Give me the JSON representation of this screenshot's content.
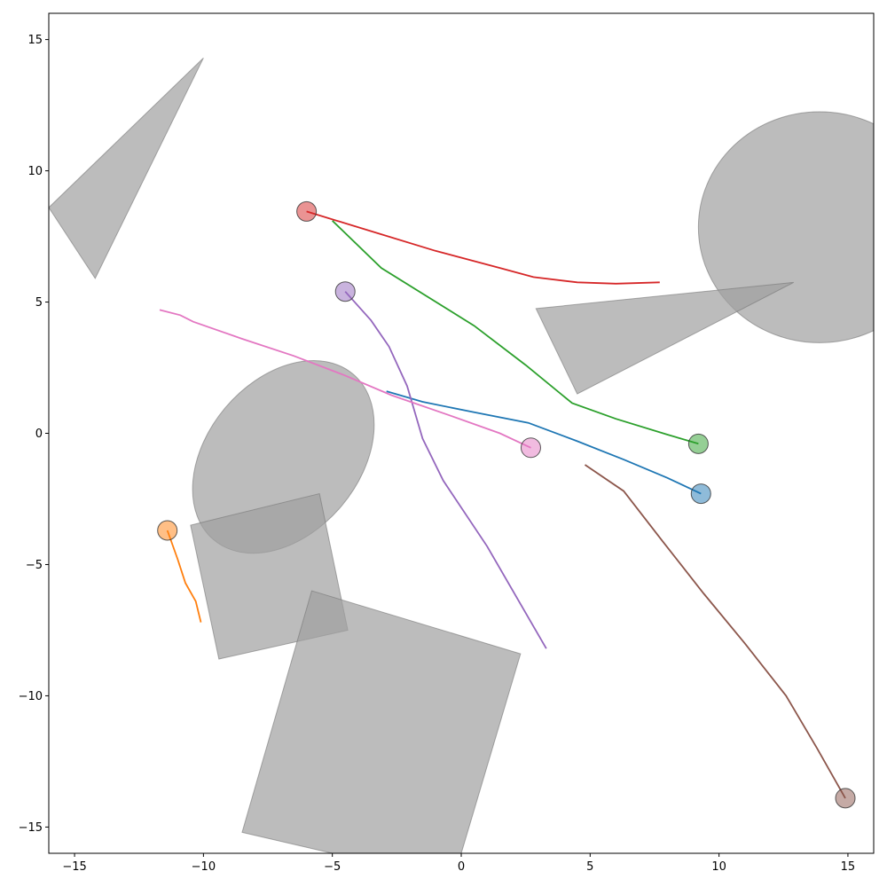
{
  "chart_data": {
    "type": "scatter",
    "title": "",
    "xlabel": "",
    "ylabel": "",
    "xlim": [
      -16,
      16
    ],
    "ylim": [
      -16,
      16
    ],
    "grid": false,
    "x_ticks": [
      -15,
      -10,
      -5,
      0,
      5,
      10,
      15
    ],
    "y_ticks": [
      -15,
      -10,
      -5,
      0,
      5,
      10,
      15
    ],
    "x_tick_labels": [
      "−15",
      "−10",
      "−5",
      "0",
      "5",
      "10",
      "15"
    ],
    "y_tick_labels": [
      "−15",
      "−10",
      "−5",
      "0",
      "5",
      "10",
      "15"
    ],
    "obstacles": [
      {
        "shape": "polygon",
        "points": [
          [
            -10.0,
            14.3
          ],
          [
            -16.0,
            8.6
          ],
          [
            -14.2,
            5.9
          ]
        ],
        "color": "#a0a0a0"
      },
      {
        "shape": "ellipse",
        "center": [
          13.9,
          7.85
        ],
        "rx": 4.7,
        "ry": 4.4,
        "angle": 0,
        "color": "#a0a0a0"
      },
      {
        "shape": "polygon",
        "points": [
          [
            2.9,
            4.75
          ],
          [
            12.9,
            5.75
          ],
          [
            4.5,
            1.5
          ]
        ],
        "color": "#a0a0a0"
      },
      {
        "shape": "ellipse",
        "center": [
          -6.9,
          -0.9
        ],
        "rx": 4.2,
        "ry": 2.9,
        "angle": -50,
        "color": "#a0a0a0"
      },
      {
        "shape": "polygon",
        "points": [
          [
            -10.5,
            -3.5
          ],
          [
            -5.5,
            -2.3
          ],
          [
            -4.4,
            -7.5
          ],
          [
            -9.4,
            -8.6
          ]
        ],
        "color": "#a0a0a0"
      },
      {
        "shape": "polygon",
        "points": [
          [
            -5.8,
            -6.0
          ],
          [
            2.3,
            -8.4
          ],
          [
            0.0,
            -16.0
          ],
          [
            -5.0,
            -16.0
          ],
          [
            -8.5,
            -15.2
          ]
        ],
        "color": "#a0a0a0"
      }
    ],
    "series": [
      {
        "color": "#1f77b4",
        "x": [
          -2.9,
          -1.5,
          0.5,
          2.6,
          4.5,
          6.3,
          8.0,
          9.3
        ],
        "y": [
          1.6,
          1.2,
          0.8,
          0.4,
          -0.3,
          -1.0,
          -1.7,
          -2.3
        ],
        "marker": [
          9.3,
          -2.3
        ]
      },
      {
        "color": "#ff7f0e",
        "x": [
          -11.4,
          -11.0,
          -10.7,
          -10.3,
          -10.1
        ],
        "y": [
          -3.7,
          -4.8,
          -5.7,
          -6.4,
          -7.2
        ],
        "marker": [
          -11.4,
          -3.7
        ]
      },
      {
        "color": "#2ca02c",
        "x": [
          -5.0,
          -3.1,
          0.5,
          2.5,
          4.3,
          6.0,
          8.0,
          9.2
        ],
        "y": [
          8.1,
          6.3,
          4.1,
          2.6,
          1.15,
          0.55,
          -0.05,
          -0.4
        ],
        "marker": [
          9.2,
          -0.4
        ]
      },
      {
        "color": "#d62728",
        "x": [
          -6.0,
          -3.5,
          -1.0,
          1.5,
          2.8,
          4.5,
          6.0,
          7.7
        ],
        "y": [
          8.45,
          7.7,
          6.95,
          6.3,
          5.95,
          5.75,
          5.7,
          5.75
        ],
        "marker": [
          -6.0,
          8.45
        ]
      },
      {
        "color": "#9467bd",
        "x": [
          -4.5,
          -3.5,
          -2.8,
          -2.1,
          -1.5,
          -0.7,
          1.0,
          2.3,
          3.3
        ],
        "y": [
          5.4,
          4.3,
          3.3,
          1.8,
          -0.2,
          -1.8,
          -4.3,
          -6.5,
          -8.2
        ],
        "marker": [
          -4.5,
          5.4
        ]
      },
      {
        "color": "#8c564b",
        "x": [
          4.8,
          6.3,
          7.8,
          9.4,
          11.0,
          12.6,
          13.8,
          14.9
        ],
        "y": [
          -1.2,
          -2.2,
          -4.1,
          -6.1,
          -8.0,
          -10.0,
          -12.0,
          -13.9
        ],
        "marker": [
          14.9,
          -13.9
        ]
      },
      {
        "color": "#e377c2",
        "x": [
          -11.7,
          -10.9,
          -10.4,
          -8.5,
          -6.5,
          -4.5,
          -2.7,
          -0.5,
          1.5,
          2.7
        ],
        "y": [
          4.7,
          4.5,
          4.25,
          3.6,
          2.95,
          2.2,
          1.45,
          0.7,
          0.0,
          -0.55
        ],
        "marker": [
          2.7,
          -0.55
        ]
      }
    ]
  }
}
